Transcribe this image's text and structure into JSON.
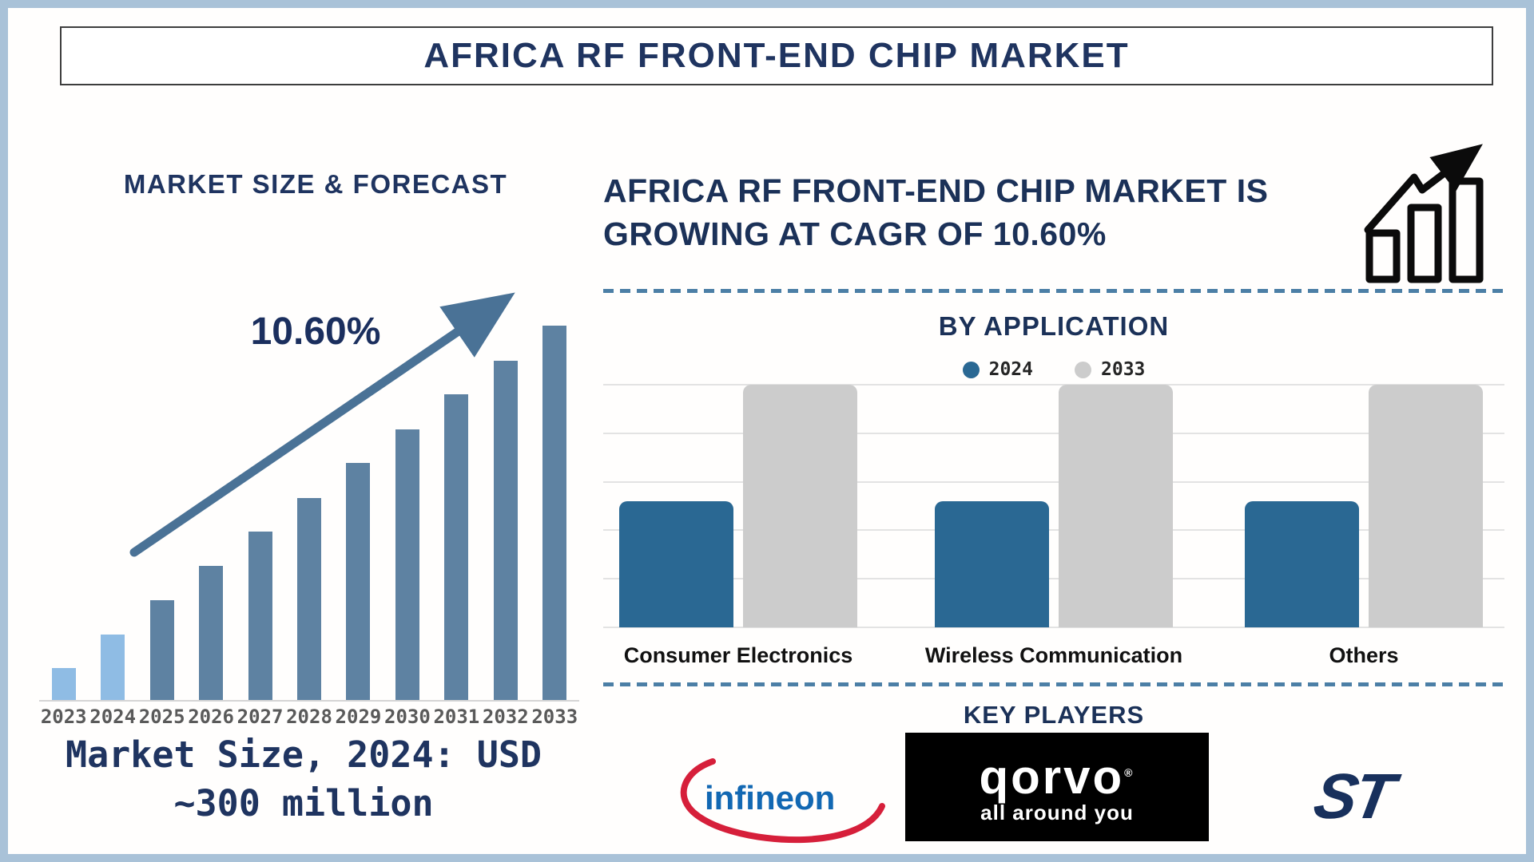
{
  "header": {
    "title": "AFRICA RF FRONT-END CHIP MARKET"
  },
  "left_panel": {
    "title": "MARKET SIZE & FORECAST",
    "cagr_label": "10.60%",
    "market_size_line1": "Market Size, 2024: USD",
    "market_size_line2": "~300 million"
  },
  "right_panel": {
    "headline_line1": "AFRICA RF FRONT-END CHIP MARKET IS",
    "headline_line2": "GROWING AT CAGR OF 10.60%",
    "by_application": {
      "title": "BY APPLICATION"
    },
    "key_players": {
      "title": "KEY PLAYERS",
      "players": [
        {
          "name": "Infineon",
          "logo_text": "infineon"
        },
        {
          "name": "Qorvo",
          "logo_text": "qorvo",
          "tagline": "all around you",
          "trademark": "®"
        },
        {
          "name": "STMicroelectronics",
          "logo_text": "ST"
        }
      ]
    }
  },
  "colors": {
    "frame": "#a9c2d8",
    "navy": "#1f3460",
    "forecast_bar_highlight": "#8fbce4",
    "forecast_bar_default": "#5e82a2",
    "trend_arrow": "#4a7296",
    "app_bar_2024": "#2a6893",
    "app_bar_2033": "#cccccc",
    "dashed_separator": "#4c7fa6",
    "year_label": "#5a5a5a",
    "infineon_blue": "#1268b3",
    "infineon_red": "#d61f3a",
    "st_navy": "#18305c"
  },
  "chart_data": [
    {
      "type": "bar",
      "title": "MARKET SIZE & FORECAST",
      "categories": [
        "2023",
        "2024",
        "2025",
        "2026",
        "2027",
        "2028",
        "2029",
        "2030",
        "2031",
        "2032",
        "2033"
      ],
      "values": [
        8.5,
        17.5,
        26.6,
        35.8,
        45.0,
        54.0,
        63.3,
        72.3,
        81.7,
        90.6,
        100
      ],
      "unit": "relative bar height, % of 2033 bar",
      "known_point": "2024 market size = USD ~300 million",
      "annotation": "10.60%",
      "xlabel": "Year",
      "ylabel": "Market size (stylized, no axis values shown)",
      "grid": false,
      "bar_colors": [
        "#8fbce4",
        "#8fbce4",
        "#5e82a2",
        "#5e82a2",
        "#5e82a2",
        "#5e82a2",
        "#5e82a2",
        "#5e82a2",
        "#5e82a2",
        "#5e82a2",
        "#5e82a2"
      ]
    },
    {
      "type": "bar",
      "title": "BY APPLICATION",
      "categories": [
        "Consumer Electronics",
        "Wireless Communication",
        "Others"
      ],
      "series": [
        {
          "name": "2024",
          "values": [
            52,
            52,
            52
          ],
          "color": "#2a6893"
        },
        {
          "name": "2033",
          "values": [
            100,
            100,
            100
          ],
          "color": "#cccccc"
        }
      ],
      "unit": "relative bar height, % of 2033 bar",
      "legend_position": "top",
      "grid": "horizontal, 5 intervals"
    }
  ]
}
